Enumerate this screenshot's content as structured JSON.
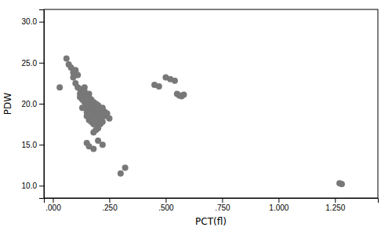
{
  "chart_data": {
    "type": "scatter",
    "xlabel": "PCT(fl)",
    "ylabel": "PDW",
    "color": "#787878",
    "xlim": [
      -0.04,
      1.44
    ],
    "ylim": [
      8.5,
      31.5
    ],
    "xticks": [
      {
        "value": 0.0,
        "label": ".000"
      },
      {
        "value": 0.25,
        "label": ".250"
      },
      {
        "value": 0.5,
        "label": ".500"
      },
      {
        "value": 0.75,
        "label": ".750"
      },
      {
        "value": 1.0,
        "label": "1.000"
      },
      {
        "value": 1.25,
        "label": "1.250"
      }
    ],
    "yticks": [
      {
        "value": 10.0,
        "label": "10.0"
      },
      {
        "value": 15.0,
        "label": "15.0"
      },
      {
        "value": 20.0,
        "label": "20.0"
      },
      {
        "value": 25.0,
        "label": "25.0"
      },
      {
        "value": 30.0,
        "label": "30.0"
      }
    ],
    "x": [
      0.03,
      0.06,
      0.07,
      0.08,
      0.09,
      0.09,
      0.1,
      0.1,
      0.1,
      0.11,
      0.11,
      0.12,
      0.12,
      0.12,
      0.13,
      0.13,
      0.13,
      0.13,
      0.14,
      0.14,
      0.14,
      0.14,
      0.15,
      0.15,
      0.15,
      0.15,
      0.15,
      0.15,
      0.16,
      0.16,
      0.16,
      0.16,
      0.16,
      0.17,
      0.17,
      0.17,
      0.17,
      0.17,
      0.18,
      0.18,
      0.18,
      0.18,
      0.18,
      0.18,
      0.19,
      0.19,
      0.19,
      0.19,
      0.19,
      0.2,
      0.2,
      0.2,
      0.2,
      0.2,
      0.21,
      0.21,
      0.21,
      0.21,
      0.22,
      0.22,
      0.22,
      0.22,
      0.23,
      0.23,
      0.24,
      0.25,
      0.15,
      0.16,
      0.18,
      0.2,
      0.22,
      0.3,
      0.32,
      0.45,
      0.47,
      0.5,
      0.52,
      0.54,
      0.55,
      0.56,
      0.57,
      0.58,
      1.27,
      1.28
    ],
    "y": [
      22.0,
      25.5,
      24.8,
      24.4,
      23.8,
      23.2,
      24.1,
      24.0,
      22.5,
      23.5,
      22.0,
      21.8,
      21.2,
      20.8,
      21.5,
      21.0,
      20.5,
      19.5,
      22.0,
      21.5,
      20.8,
      20.2,
      21.0,
      20.5,
      20.0,
      19.5,
      19.0,
      18.5,
      21.2,
      20.8,
      20.0,
      19.5,
      18.0,
      20.5,
      19.8,
      19.2,
      18.5,
      17.8,
      20.2,
      19.5,
      18.8,
      18.2,
      17.5,
      16.5,
      20.0,
      19.2,
      18.5,
      17.5,
      16.8,
      19.8,
      19.0,
      18.5,
      17.8,
      17.0,
      19.5,
      18.8,
      18.2,
      17.5,
      19.2,
      18.5,
      17.8,
      15.0,
      19.0,
      18.5,
      18.8,
      18.2,
      15.2,
      14.8,
      14.5,
      15.5,
      19.5,
      11.5,
      12.2,
      22.3,
      22.1,
      23.2,
      23.0,
      22.8,
      21.2,
      21.0,
      20.9,
      21.1,
      10.3,
      10.2
    ]
  }
}
